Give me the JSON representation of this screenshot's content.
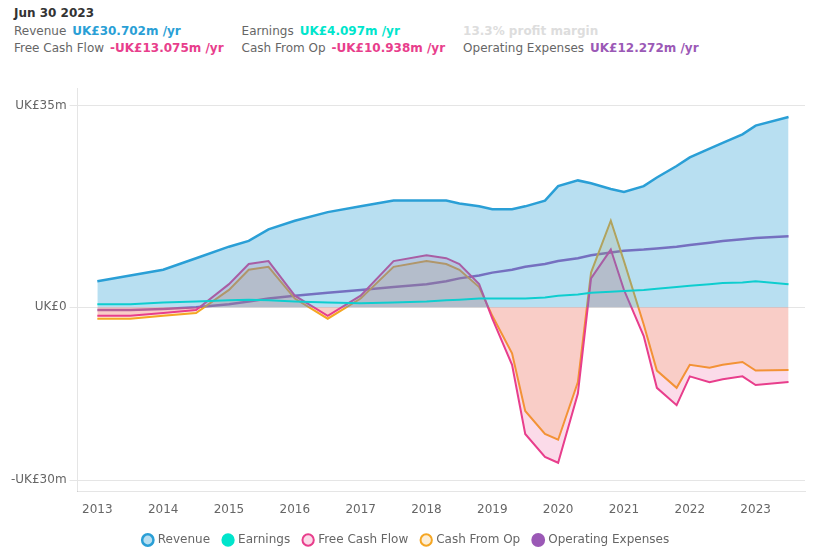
{
  "chart_data": {
    "type": "line",
    "x": [
      2013.0,
      2013.5,
      2014.0,
      2014.5,
      2015.0,
      2015.3,
      2015.6,
      2016.0,
      2016.5,
      2017.0,
      2017.5,
      2018.0,
      2018.3,
      2018.5,
      2018.8,
      2019.0,
      2019.3,
      2019.5,
      2019.8,
      2020.0,
      2020.3,
      2020.5,
      2020.8,
      2021.0,
      2021.3,
      2021.5,
      2021.8,
      2022.0,
      2022.3,
      2022.5,
      2022.8,
      2023.0,
      2023.5
    ],
    "xlim": [
      2012.7,
      2023.75
    ],
    "xticks": [
      2013,
      2014,
      2015,
      2016,
      2017,
      2018,
      2019,
      2020,
      2021,
      2022,
      2023
    ],
    "ylim": [
      -32,
      38
    ],
    "yticks": [
      {
        "value": -30,
        "label": "-UK£30m"
      },
      {
        "value": 0,
        "label": "UK£0"
      },
      {
        "value": 35,
        "label": "UK£35m"
      }
    ],
    "grid": true,
    "legend": "bottom",
    "series": [
      {
        "name": "Revenue",
        "color": "#2a9fd6",
        "values": [
          4.5,
          5.5,
          6.5,
          8.5,
          10.5,
          11.5,
          13.5,
          15.0,
          16.5,
          17.5,
          18.5,
          18.5,
          18.5,
          18.0,
          17.5,
          17.0,
          17.0,
          17.5,
          18.5,
          21.0,
          22.0,
          21.5,
          20.5,
          20.0,
          21.0,
          22.5,
          24.5,
          26.0,
          27.5,
          28.5,
          30.0,
          31.5,
          33.0
        ]
      },
      {
        "name": "Earnings",
        "color": "#00e5cc",
        "values": [
          0.5,
          0.5,
          0.8,
          1.0,
          1.2,
          1.3,
          1.2,
          1.0,
          0.8,
          0.7,
          0.8,
          1.0,
          1.2,
          1.3,
          1.5,
          1.5,
          1.5,
          1.5,
          1.7,
          2.0,
          2.2,
          2.5,
          2.7,
          2.8,
          3.0,
          3.2,
          3.5,
          3.7,
          4.0,
          4.2,
          4.3,
          4.5,
          4.0
        ]
      },
      {
        "name": "Free Cash Flow",
        "color": "#e83e8c",
        "values": [
          -1.5,
          -1.5,
          -1.0,
          -0.5,
          4.0,
          7.5,
          8.0,
          2.0,
          -1.5,
          2.0,
          8.0,
          9.0,
          8.5,
          7.5,
          4.0,
          -2.0,
          -10.0,
          -22.0,
          -26.0,
          -27.0,
          -15.0,
          5.0,
          10.0,
          3.0,
          -5.0,
          -14.0,
          -17.0,
          -12.0,
          -13.0,
          -12.5,
          -12.0,
          -13.5,
          -13.0
        ]
      },
      {
        "name": "Cash From Op",
        "color": "#f5a623",
        "values": [
          -2.0,
          -2.0,
          -1.5,
          -1.0,
          3.0,
          6.5,
          7.0,
          1.5,
          -2.0,
          1.5,
          7.0,
          8.0,
          7.5,
          6.5,
          3.5,
          -1.5,
          -8.0,
          -18.0,
          -22.0,
          -23.0,
          -13.0,
          6.0,
          15.0,
          8.0,
          -3.0,
          -11.0,
          -14.0,
          -10.0,
          -10.5,
          -10.0,
          -9.5,
          -11.0,
          -10.9
        ]
      },
      {
        "name": "Operating Expenses",
        "color": "#9b59b6",
        "values": [
          -0.5,
          -0.5,
          -0.3,
          0.0,
          0.5,
          1.0,
          1.5,
          2.0,
          2.5,
          3.0,
          3.5,
          4.0,
          4.5,
          5.0,
          5.5,
          6.0,
          6.5,
          7.0,
          7.5,
          8.0,
          8.5,
          9.0,
          9.5,
          9.8,
          10.0,
          10.2,
          10.5,
          10.8,
          11.2,
          11.5,
          11.8,
          12.0,
          12.3
        ]
      }
    ],
    "annotations": [
      {
        "title": "Jun 30 2023",
        "rows": [
          {
            "label": "Revenue",
            "value": "UK£30.702m /yr",
            "color": "#2a9fd6"
          },
          {
            "label": "Earnings",
            "value": "UK£4.097m /yr",
            "color": "#00e5cc"
          },
          {
            "value": "13.3% profit margin",
            "color": "#dddddd"
          },
          {
            "label": "Free Cash Flow",
            "value": "-UK£13.075m /yr",
            "color": "#e83e8c"
          },
          {
            "label": "Cash From Op",
            "value": "-UK£10.938m /yr",
            "color": "#e83e8c"
          },
          {
            "label": "Operating Expenses",
            "value": "UK£12.272m /yr",
            "color": "#9b59b6"
          }
        ]
      }
    ]
  }
}
